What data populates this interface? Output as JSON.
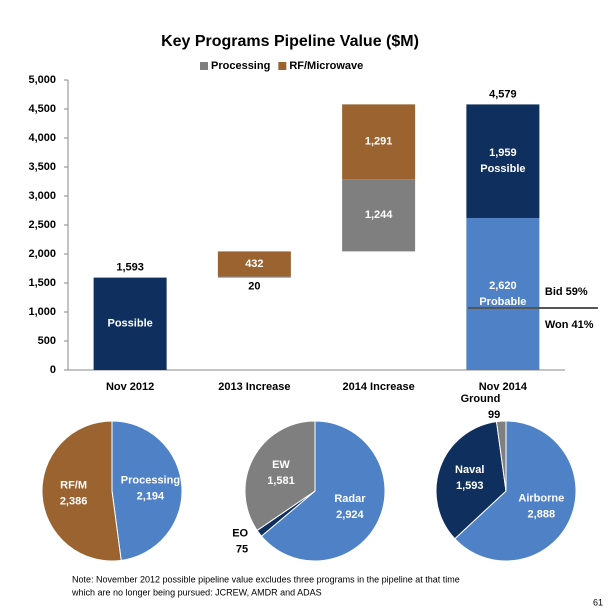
{
  "chart_data": [
    {
      "type": "waterfall",
      "title": "Key Programs Pipeline Value ($M)",
      "categories": [
        "Nov 2012",
        "2013 Increase",
        "2014 Increase",
        "Nov 2014"
      ],
      "bar_kinds": [
        "total",
        "increase",
        "increase",
        "total"
      ],
      "series": [
        {
          "name": "Probable",
          "color": "#4f81c7",
          "legend": false,
          "values": [
            null,
            null,
            null,
            2620
          ],
          "value_labels": [
            null,
            null,
            null,
            "2,620"
          ]
        },
        {
          "name": "Possible",
          "color": "#0f2f5f",
          "legend": false,
          "values": [
            1593,
            null,
            null,
            1959
          ],
          "value_labels": [
            "1,593",
            null,
            null,
            "1,959"
          ]
        },
        {
          "name": "Processing",
          "color": "#7f7f7f",
          "legend": true,
          "values": [
            null,
            20,
            1244,
            null
          ],
          "value_labels": [
            null,
            "20",
            "1,244",
            null
          ]
        },
        {
          "name": "RF/Microwave",
          "color": "#9a6330",
          "legend": true,
          "values": [
            null,
            432,
            1291,
            null
          ],
          "value_labels": [
            null,
            "432",
            "1,291",
            null
          ]
        }
      ],
      "total_label": {
        "value": 4579,
        "label": "4,579"
      },
      "split_line": {
        "value": 1070,
        "labels": [
          "Bid 59%",
          "Won 41%"
        ]
      },
      "ylim": [
        0,
        5000
      ],
      "yticks": [
        0,
        500,
        {
          "value": 1000,
          "label": "1,000"
        },
        {
          "value": 1500,
          "label": "1,500"
        },
        {
          "value": 2000,
          "label": "2,000"
        },
        {
          "value": 2500,
          "label": "2,500"
        },
        {
          "value": 3000,
          "label": "3,000"
        },
        {
          "value": 3500,
          "label": "3,500"
        },
        {
          "value": 4000,
          "label": "4,000"
        },
        {
          "value": 4500,
          "label": "4,500"
        },
        {
          "value": 5000,
          "label": "5,000"
        }
      ],
      "grid": false
    },
    {
      "type": "pie",
      "labels": [
        "Processing",
        "RF/M"
      ],
      "values": [
        2194,
        2386
      ],
      "value_labels": [
        "2,194",
        "2,386"
      ],
      "colors": [
        "#4f81c7",
        "#9a6330"
      ],
      "label_outside": [
        false,
        false
      ]
    },
    {
      "type": "pie",
      "labels": [
        "Radar",
        "EO",
        "EW"
      ],
      "values": [
        2924,
        75,
        1581
      ],
      "value_labels": [
        "2,924",
        "75",
        "1,581"
      ],
      "colors": [
        "#4f81c7",
        "#0f2f5f",
        "#7f7f7f"
      ],
      "label_outside": [
        false,
        true,
        false
      ]
    },
    {
      "type": "pie",
      "labels": [
        "Airborne",
        "Naval",
        "Ground"
      ],
      "values": [
        2888,
        1593,
        99
      ],
      "value_labels": [
        "2,888",
        "1,593",
        "99"
      ],
      "colors": [
        "#4f81c7",
        "#0f2f5f",
        "#7f7f7f"
      ],
      "label_outside": [
        false,
        false,
        true
      ]
    }
  ],
  "note": [
    "Note: November 2012 possible pipeline value excludes three programs in the pipeline at that time",
    "which are no longer being pursued: JCREW, AMDR and ADAS"
  ],
  "page_number": "61"
}
